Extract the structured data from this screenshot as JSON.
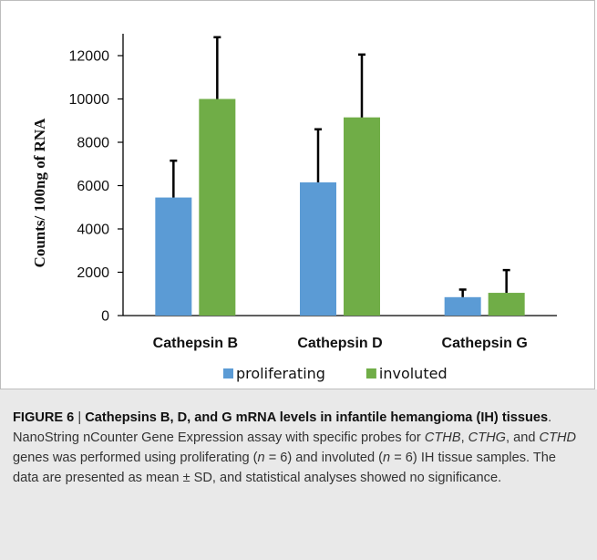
{
  "chart_data": {
    "type": "bar",
    "categories": [
      "Cathepsin B",
      "Cathepsin D",
      "Cathepsin G"
    ],
    "series": [
      {
        "name": "proliferating",
        "color": "#5b9bd5",
        "values": [
          5450,
          6150,
          850
        ],
        "error": [
          1700,
          2450,
          350
        ]
      },
      {
        "name": "involuted",
        "color": "#70ad47",
        "values": [
          10000,
          9150,
          1050
        ],
        "error": [
          2850,
          2900,
          1050
        ]
      }
    ],
    "ylabel": "Counts/ 100ng of RNA",
    "ylim": [
      0,
      12000
    ],
    "yticks": [
      0,
      2000,
      4000,
      6000,
      8000,
      10000,
      12000
    ],
    "legend_position": "bottom",
    "grid": false
  },
  "caption": {
    "fig_label": "FIGURE 6",
    "separator": " | ",
    "title": "Cathepsins B, D, and G mRNA levels in infantile hemangioma (IH) tissues",
    "text_1": ". NanoString nCounter Gene Expression assay with specific probes for ",
    "gene_1": "CTHB",
    "comma_1": ", ",
    "gene_2": "CTHG",
    "and_text": ", and ",
    "gene_3": "CTHD",
    "text_2": " genes was performed using proliferating (",
    "n_1": "n",
    "text_3": " = 6) and involuted (",
    "n_2": "n",
    "text_4": " = 6) IH tissue samples. The data are presented as mean ± SD, and statistical analyses showed no significance."
  }
}
